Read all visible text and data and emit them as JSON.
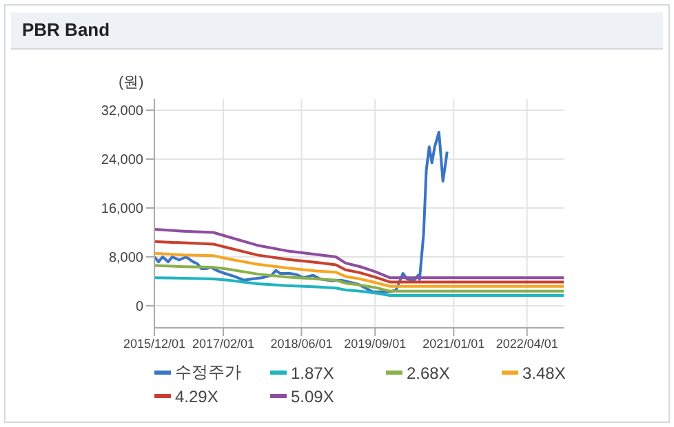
{
  "chart_data": {
    "type": "line",
    "title": "PBR Band",
    "ylabel": "(원)",
    "x": [
      "2015-12-01",
      "2016-06-01",
      "2016-12-01",
      "2017-03-01",
      "2017-09-01",
      "2018-03-01",
      "2018-09-01",
      "2019-01-01",
      "2019-03-01",
      "2019-06-01",
      "2019-09-01",
      "2019-12-01",
      "2022-11-15"
    ],
    "series": [
      {
        "name": "수정주가",
        "color": "#3a75c4",
        "x": [
          "2015-12-01",
          "2015-12-27",
          "2016-01-21",
          "2016-02-25",
          "2016-03-21",
          "2016-05-03",
          "2016-06-15",
          "2016-07-28",
          "2016-08-23",
          "2016-09-17",
          "2016-10-22",
          "2016-11-16",
          "2016-12-29",
          "2017-02-10",
          "2017-04-11",
          "2017-06-10",
          "2017-07-31",
          "2017-09-29",
          "2017-11-28",
          "2017-12-24",
          "2018-01-19",
          "2018-03-20",
          "2018-05-02",
          "2018-06-14",
          "2018-08-13",
          "2018-09-24",
          "2018-12-02",
          "2019-01-31",
          "2019-03-23",
          "2019-05-22",
          "2019-08-16",
          "2019-12-05",
          "2020-01-09",
          "2020-02-21",
          "2020-03-17",
          "2020-04-29",
          "2020-05-25",
          "2020-06-03",
          "2020-06-28",
          "2020-07-15",
          "2020-08-02",
          "2020-08-19",
          "2020-09-05",
          "2020-10-01",
          "2020-10-09",
          "2020-10-26",
          "2020-11-12",
          "2020-11-21"
        ],
        "values": [
          8000,
          7200,
          8000,
          7200,
          8000,
          7500,
          8000,
          7200,
          6900,
          6100,
          6100,
          6300,
          5700,
          5300,
          4800,
          4200,
          4400,
          4600,
          5000,
          5800,
          5300,
          5300,
          5100,
          4600,
          5000,
          4400,
          4100,
          4200,
          3900,
          3500,
          2300,
          2300,
          2600,
          5300,
          4400,
          4100,
          5000,
          4300,
          11700,
          22200,
          26000,
          23400,
          26000,
          28400,
          26000,
          20400,
          23400,
          25200
        ]
      },
      {
        "name": "1.87X",
        "color": "#1fb5c0",
        "values": [
          4600,
          4500,
          4400,
          4200,
          3600,
          3300,
          3100,
          2900,
          2600,
          2400,
          2100,
          1700,
          1700
        ]
      },
      {
        "name": "2.68X",
        "color": "#8bb04a",
        "values": [
          6600,
          6400,
          6300,
          6000,
          5200,
          4700,
          4400,
          4200,
          3700,
          3400,
          3000,
          2400,
          2400
        ]
      },
      {
        "name": "3.48X",
        "color": "#f5a623",
        "values": [
          8600,
          8300,
          8200,
          7700,
          6800,
          6200,
          5700,
          5500,
          4800,
          4400,
          3800,
          3200,
          3200
        ]
      },
      {
        "name": "4.29X",
        "color": "#c9402f",
        "values": [
          10500,
          10300,
          10100,
          9500,
          8300,
          7600,
          7100,
          6700,
          5900,
          5400,
          4700,
          3900,
          3900
        ]
      },
      {
        "name": "5.09X",
        "color": "#8e4ea0",
        "values": [
          12500,
          12200,
          12000,
          11300,
          9900,
          9000,
          8400,
          8000,
          7000,
          6400,
          5600,
          4600,
          4600
        ]
      }
    ],
    "xlim": [
      "2015-12-01",
      "2022-11-15"
    ],
    "xticks": [
      {
        "value": "2015-12-01",
        "label": "2015/12/01"
      },
      {
        "value": "2017-02-01",
        "label": "2017/02/01"
      },
      {
        "value": "2018-06-01",
        "label": "2018/06/01"
      },
      {
        "value": "2019-09-01",
        "label": "2019/09/01"
      },
      {
        "value": "2021-01-01",
        "label": "2021/01/01"
      },
      {
        "value": "2022-04-01",
        "label": "2022/04/01"
      }
    ],
    "ylim": [
      -3600,
      33800
    ],
    "yticks": [
      0,
      {
        "value": 8000,
        "label": "8,000"
      },
      {
        "value": 16000,
        "label": "16,000"
      },
      {
        "value": 24000,
        "label": "24,000"
      },
      {
        "value": 32000,
        "label": "32,000"
      }
    ],
    "grid": true,
    "legend": "bottom",
    "marker": "none",
    "line_style": "solid"
  }
}
